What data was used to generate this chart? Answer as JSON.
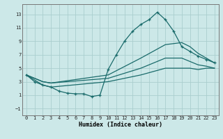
{
  "xlabel": "Humidex (Indice chaleur)",
  "xlim": [
    -0.5,
    23.5
  ],
  "ylim": [
    -2.0,
    14.5
  ],
  "yticks": [
    -1,
    1,
    3,
    5,
    7,
    9,
    11,
    13
  ],
  "xticks": [
    0,
    1,
    2,
    3,
    4,
    5,
    6,
    7,
    8,
    9,
    10,
    11,
    12,
    13,
    14,
    15,
    16,
    17,
    18,
    19,
    20,
    21,
    22,
    23
  ],
  "bg_color": "#cce8e8",
  "grid_color": "#aacece",
  "line_color": "#1a6b6b",
  "line1_x": [
    0,
    1,
    2,
    3,
    4,
    5,
    6,
    7,
    8,
    9,
    10,
    11,
    12,
    13,
    14,
    15,
    16,
    17,
    18,
    19,
    20,
    21,
    22,
    23
  ],
  "line1_y": [
    4.0,
    3.0,
    2.5,
    2.2,
    1.6,
    1.3,
    1.2,
    1.2,
    0.8,
    1.0,
    4.8,
    7.0,
    9.0,
    10.5,
    11.5,
    12.2,
    13.3,
    12.2,
    10.5,
    8.2,
    7.5,
    6.8,
    6.3,
    5.8
  ],
  "line2_x": [
    0,
    2,
    3,
    10,
    14,
    17,
    19,
    20,
    21,
    22,
    23
  ],
  "line2_y": [
    4.0,
    3.0,
    2.8,
    4.0,
    6.5,
    8.5,
    8.8,
    8.2,
    7.2,
    6.5,
    5.8
  ],
  "line3_x": [
    0,
    2,
    3,
    10,
    14,
    17,
    19,
    20,
    21,
    22,
    23
  ],
  "line3_y": [
    4.0,
    3.0,
    2.8,
    3.5,
    5.0,
    6.5,
    6.5,
    6.0,
    5.5,
    5.3,
    5.0
  ],
  "line4_x": [
    0,
    2,
    3,
    10,
    14,
    17,
    19,
    20,
    21,
    22,
    23
  ],
  "line4_y": [
    4.0,
    2.5,
    2.2,
    3.0,
    4.0,
    5.0,
    5.0,
    5.0,
    4.8,
    5.0,
    5.0
  ]
}
